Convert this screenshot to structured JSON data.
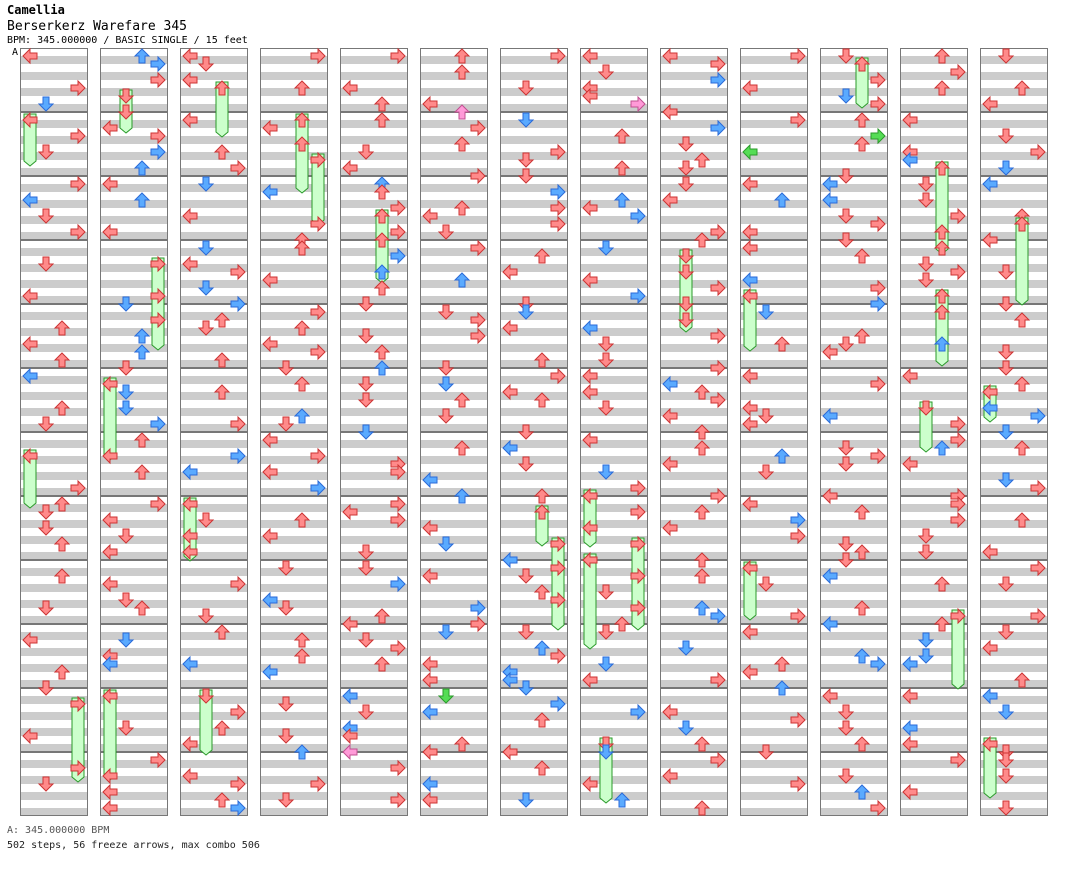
{
  "header": {
    "artist": "Camellia",
    "title": "Berserkerz Warefare 345",
    "info": "BPM: 345.000000 / BASIC SINGLE / 15 feet",
    "bpm_marker": "A"
  },
  "footer": {
    "bpm_line": "A: 345.000000 BPM",
    "stats": "502 steps, 56 freeze arrows, max combo 506"
  },
  "colors": {
    "note": "#ff8a8a",
    "quarter_note": "#5aaaff",
    "shock": "#55dd55",
    "mine_pink": "#ff9ad8",
    "freeze": "#ccffcc",
    "stripe": "#cccccc"
  },
  "chart_data": {
    "type": "stepchart",
    "columns": 13,
    "measures_per_column": 12,
    "total_steps": 502,
    "freeze_arrows": 56,
    "max_combo": 506,
    "bpm": 345.0
  }
}
